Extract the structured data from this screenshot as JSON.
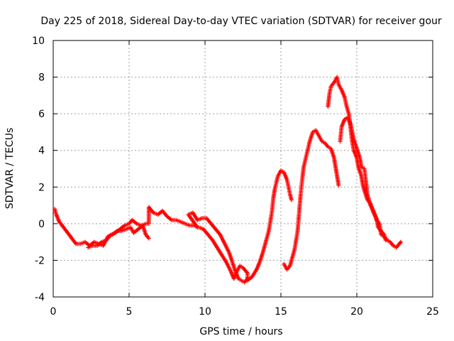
{
  "chart_data": {
    "type": "scatter",
    "title": "Day 225 of 2018, Sidereal Day-to-day VTEC variation (SDTVAR) for receiver gour",
    "xlabel": "GPS time / hours",
    "ylabel": "SDTVAR / TECUs",
    "xlim": [
      0,
      25
    ],
    "ylim": [
      -4,
      10
    ],
    "xticks": [
      0,
      5,
      10,
      15,
      20,
      25
    ],
    "yticks": [
      -4,
      -2,
      0,
      2,
      4,
      6,
      8,
      10
    ],
    "grid": true,
    "marker": "+",
    "series": [
      {
        "name": "SDTVAR",
        "color": "#ff0000",
        "points": [
          [
            0.1,
            0.8
          ],
          [
            0.2,
            0.5
          ],
          [
            0.3,
            0.3
          ],
          [
            0.4,
            0.1
          ],
          [
            0.5,
            0.0
          ],
          [
            1.5,
            -1.1
          ],
          [
            1.8,
            -1.1
          ],
          [
            2.1,
            -1.0
          ],
          [
            2.4,
            -1.2
          ],
          [
            2.7,
            -1.0
          ],
          [
            3.0,
            -1.1
          ],
          [
            3.3,
            -1.2
          ],
          [
            3.6,
            -0.7
          ],
          [
            3.9,
            -0.6
          ],
          [
            4.2,
            -0.4
          ],
          [
            4.5,
            -0.4
          ],
          [
            4.8,
            -0.3
          ],
          [
            5.1,
            -0.2
          ],
          [
            5.3,
            -0.5
          ],
          [
            5.6,
            -0.3
          ],
          [
            5.9,
            -0.1
          ],
          [
            6.1,
            -0.6
          ],
          [
            6.3,
            -0.8
          ],
          [
            2.3,
            -1.3
          ],
          [
            2.6,
            -1.2
          ],
          [
            2.9,
            -1.2
          ],
          [
            3.2,
            -1.0
          ],
          [
            3.5,
            -0.9
          ],
          [
            3.8,
            -0.6
          ],
          [
            4.1,
            -0.5
          ],
          [
            4.4,
            -0.3
          ],
          [
            4.7,
            -0.1
          ],
          [
            5.0,
            0.0
          ],
          [
            5.2,
            0.2
          ],
          [
            5.5,
            0.0
          ],
          [
            5.8,
            -0.1
          ],
          [
            6.1,
            0.0
          ],
          [
            6.3,
            0.0
          ],
          [
            6.3,
            0.9
          ],
          [
            6.6,
            0.6
          ],
          [
            6.9,
            0.5
          ],
          [
            7.2,
            0.7
          ],
          [
            7.5,
            0.4
          ],
          [
            7.8,
            0.2
          ],
          [
            8.1,
            0.2
          ],
          [
            8.4,
            0.1
          ],
          [
            8.7,
            0.0
          ],
          [
            9.0,
            -0.1
          ],
          [
            9.3,
            -0.1
          ],
          [
            9.5,
            -0.2
          ],
          [
            8.9,
            0.5
          ],
          [
            9.2,
            0.6
          ],
          [
            9.5,
            0.2
          ],
          [
            9.8,
            0.3
          ],
          [
            10.1,
            0.3
          ],
          [
            10.4,
            0.0
          ],
          [
            10.7,
            -0.3
          ],
          [
            11.0,
            -0.6
          ],
          [
            11.3,
            -1.1
          ],
          [
            11.6,
            -1.6
          ],
          [
            11.8,
            -2.1
          ],
          [
            12.0,
            -2.6
          ],
          [
            12.2,
            -3.0
          ],
          [
            12.4,
            -3.1
          ],
          [
            12.6,
            -3.2
          ],
          [
            12.8,
            -3.0
          ],
          [
            9.6,
            -0.2
          ],
          [
            9.9,
            -0.3
          ],
          [
            10.2,
            -0.6
          ],
          [
            10.5,
            -0.9
          ],
          [
            10.8,
            -1.3
          ],
          [
            11.1,
            -1.7
          ],
          [
            11.4,
            -2.1
          ],
          [
            11.7,
            -2.6
          ],
          [
            11.9,
            -3.0
          ],
          [
            12.1,
            -2.6
          ],
          [
            12.3,
            -2.3
          ],
          [
            12.5,
            -2.4
          ],
          [
            12.7,
            -2.6
          ],
          [
            12.8,
            -2.7
          ],
          [
            12.8,
            -3.1
          ],
          [
            13.1,
            -2.9
          ],
          [
            13.4,
            -2.5
          ],
          [
            13.6,
            -2.1
          ],
          [
            13.8,
            -1.6
          ],
          [
            14.0,
            -1.0
          ],
          [
            14.2,
            -0.4
          ],
          [
            14.4,
            0.6
          ],
          [
            14.5,
            1.4
          ],
          [
            14.6,
            1.9
          ],
          [
            14.8,
            2.6
          ],
          [
            15.0,
            2.9
          ],
          [
            15.2,
            2.8
          ],
          [
            15.4,
            2.4
          ],
          [
            15.5,
            2.0
          ],
          [
            15.6,
            1.6
          ],
          [
            15.7,
            1.3
          ],
          [
            15.2,
            -2.2
          ],
          [
            15.4,
            -2.5
          ],
          [
            15.6,
            -2.3
          ],
          [
            15.9,
            -1.4
          ],
          [
            16.1,
            -0.4
          ],
          [
            16.2,
            0.6
          ],
          [
            16.3,
            1.6
          ],
          [
            16.4,
            2.4
          ],
          [
            16.5,
            3.1
          ],
          [
            16.7,
            3.8
          ],
          [
            16.9,
            4.5
          ],
          [
            17.1,
            5.0
          ],
          [
            17.3,
            5.1
          ],
          [
            17.5,
            4.8
          ],
          [
            17.7,
            4.5
          ],
          [
            17.9,
            4.4
          ],
          [
            18.1,
            4.2
          ],
          [
            18.3,
            4.1
          ],
          [
            18.5,
            3.6
          ],
          [
            18.6,
            3.1
          ],
          [
            18.7,
            2.6
          ],
          [
            18.8,
            2.1
          ],
          [
            18.1,
            6.4
          ],
          [
            18.2,
            7.1
          ],
          [
            18.3,
            7.5
          ],
          [
            18.5,
            7.7
          ],
          [
            18.7,
            8.0
          ],
          [
            18.8,
            7.6
          ],
          [
            19.0,
            7.3
          ],
          [
            19.2,
            6.9
          ],
          [
            19.3,
            6.5
          ],
          [
            19.5,
            5.9
          ],
          [
            19.6,
            5.1
          ],
          [
            19.7,
            4.4
          ],
          [
            19.8,
            4.0
          ],
          [
            20.0,
            3.6
          ],
          [
            20.1,
            3.1
          ],
          [
            20.3,
            2.6
          ],
          [
            20.4,
            2.1
          ],
          [
            20.5,
            1.8
          ],
          [
            20.7,
            1.3
          ],
          [
            20.9,
            1.1
          ],
          [
            21.1,
            0.6
          ],
          [
            21.3,
            0.3
          ],
          [
            21.4,
            -0.2
          ],
          [
            21.6,
            -0.4
          ],
          [
            21.8,
            -0.6
          ],
          [
            21.9,
            -0.9
          ],
          [
            18.9,
            4.5
          ],
          [
            19.0,
            5.3
          ],
          [
            19.2,
            5.7
          ],
          [
            19.4,
            5.8
          ],
          [
            19.6,
            5.4
          ],
          [
            19.8,
            4.6
          ],
          [
            20.0,
            4.1
          ],
          [
            20.2,
            3.6
          ],
          [
            20.3,
            3.1
          ],
          [
            20.5,
            3.0
          ],
          [
            20.6,
            2.3
          ],
          [
            20.7,
            1.6
          ],
          [
            20.9,
            1.0
          ],
          [
            21.1,
            0.7
          ],
          [
            21.3,
            0.2
          ],
          [
            21.5,
            0.0
          ],
          [
            21.6,
            -0.6
          ],
          [
            21.8,
            -0.7
          ],
          [
            22.0,
            -0.9
          ],
          [
            22.2,
            -1.0
          ],
          [
            22.4,
            -1.2
          ],
          [
            22.6,
            -1.3
          ],
          [
            22.8,
            -1.1
          ],
          [
            22.9,
            -1.0
          ]
        ]
      }
    ]
  }
}
